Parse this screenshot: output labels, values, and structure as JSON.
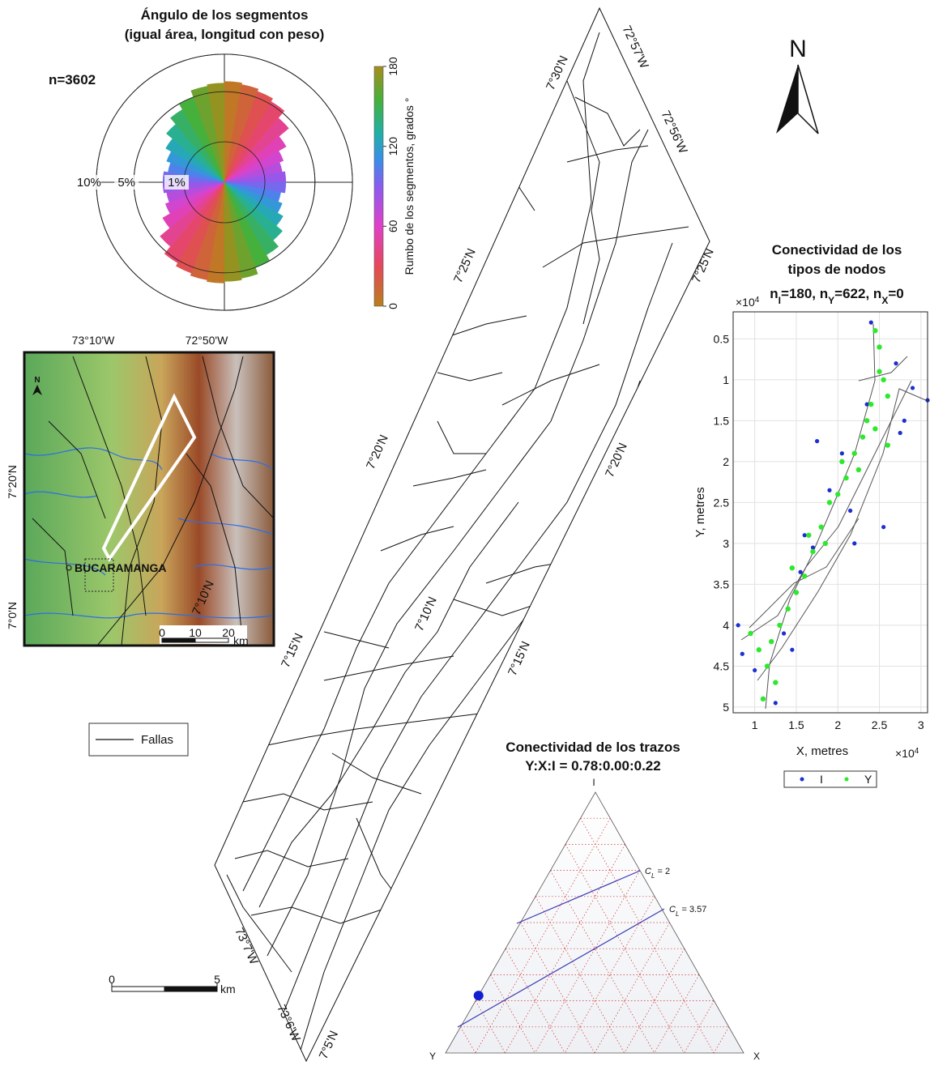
{
  "rose": {
    "type": "rose",
    "title": [
      "Ángulo de los segmentos",
      "(igual área, longitud con peso)"
    ],
    "n_label": "n=3602",
    "bins": [
      0,
      10,
      20,
      30,
      40,
      50,
      60,
      70,
      80,
      90,
      100,
      110,
      120,
      130,
      140,
      150,
      160,
      170,
      180
    ],
    "values": [
      6.2,
      6.0,
      5.7,
      5.3,
      4.3,
      3.1,
      2.4,
      2.1,
      2.3,
      2.3,
      2.0,
      2.3,
      2.8,
      3.5,
      4.3,
      5.0,
      5.8,
      6.0
    ],
    "rings": [
      {
        "value": 1,
        "label": "1%"
      },
      {
        "value": 5,
        "label": "5%"
      },
      {
        "value": 10,
        "label": "10%"
      }
    ],
    "colorbar": {
      "label": "Rumbo de los segmentos, grados °",
      "lim": [
        0,
        180
      ],
      "ticks": [
        0,
        60,
        120,
        180
      ]
    },
    "colormap": [
      {
        "at": 0,
        "color": "#b8801c"
      },
      {
        "at": 30,
        "color": "#e6485a"
      },
      {
        "at": 60,
        "color": "#e040c8"
      },
      {
        "at": 90,
        "color": "#8a5cf0"
      },
      {
        "at": 110,
        "color": "#3a8ee8"
      },
      {
        "at": 130,
        "color": "#20b0a6"
      },
      {
        "at": 155,
        "color": "#46b03c"
      },
      {
        "at": 180,
        "color": "#a88c1c"
      }
    ]
  },
  "inset_map": {
    "lon_labels": [
      "73°10'W",
      "72°50'W"
    ],
    "lat_labels": [
      "7°20'N",
      "7°0'N"
    ],
    "city": "BUCARAMANGA",
    "north": "N",
    "scale": {
      "ticks": [
        0,
        10,
        20
      ],
      "unit": "km"
    }
  },
  "fault_map": {
    "labels": [
      "7°30'N",
      "72°57'W",
      "72°56'W",
      "7°25'N",
      "7°25'N",
      "7°20'N",
      "7°20'N",
      "7°15'N",
      "7°15'N",
      "7°10'N",
      "7°10'N",
      "73°7'W",
      "73°6'W",
      "7°5'N"
    ],
    "legend": "Fallas",
    "scale": {
      "ticks": [
        0,
        5
      ],
      "unit": "km"
    }
  },
  "north_arrow": "N",
  "nodes": {
    "type": "scatter",
    "title": [
      "Conectividad de los",
      "tipos de nodos"
    ],
    "subtitle": [
      {
        "base": "n",
        "sub": "I",
        "text": "=180, "
      },
      {
        "base": "n",
        "sub": "Y",
        "text": "=622, "
      },
      {
        "base": "n",
        "sub": "X",
        "text": "=0"
      }
    ],
    "xlabel": "X, metres",
    "ylabel": "Y, metres",
    "exponent": {
      "base": "×10",
      "exp": "4"
    },
    "xlim": [
      0.74,
      3.08
    ],
    "ylim": [
      0.17,
      5.07
    ],
    "y_reversed": true,
    "xticks": [
      1,
      1.5,
      2,
      2.5,
      3
    ],
    "yticks": [
      0.5,
      1,
      1.5,
      2,
      2.5,
      3,
      3.5,
      4,
      4.5,
      5
    ],
    "grid": true,
    "series": [
      {
        "name": "I",
        "color": "#1c2fd0",
        "x": [
          0.8,
          0.85,
          1.0,
          1.25,
          1.35,
          1.55,
          1.7,
          1.75,
          1.9,
          2.05,
          2.15,
          2.35,
          2.4,
          2.7,
          2.8,
          2.9,
          3.08,
          2.2,
          1.6,
          1.45,
          2.55,
          2.75
        ],
        "values": [
          4.0,
          4.35,
          4.55,
          4.95,
          4.1,
          3.35,
          3.05,
          1.75,
          2.35,
          1.9,
          2.6,
          1.3,
          0.3,
          0.8,
          1.5,
          1.1,
          1.25,
          3.0,
          2.9,
          4.3,
          2.8,
          1.65
        ]
      },
      {
        "name": "Y",
        "color": "#2ee82e",
        "x": [
          1.15,
          1.2,
          1.3,
          1.25,
          1.4,
          1.5,
          1.45,
          1.6,
          1.7,
          1.65,
          1.8,
          1.9,
          1.85,
          2.0,
          2.1,
          2.05,
          2.2,
          2.3,
          2.25,
          2.35,
          2.4,
          2.45,
          2.5,
          2.55,
          2.6,
          2.5,
          2.45,
          2.6,
          1.05,
          0.95,
          1.1
        ],
        "values": [
          4.5,
          4.2,
          4.0,
          4.7,
          3.8,
          3.6,
          3.3,
          3.4,
          3.1,
          2.9,
          2.8,
          2.5,
          3.0,
          2.4,
          2.2,
          2.0,
          1.9,
          1.7,
          2.1,
          1.5,
          1.3,
          1.6,
          0.9,
          1.0,
          1.2,
          0.6,
          0.4,
          1.8,
          4.3,
          4.1,
          4.9
        ]
      }
    ]
  },
  "ternary": {
    "type": "ternary",
    "title": [
      "Conectividad de los trazos",
      "Y:X:I = 0.78:0.00:0.22"
    ],
    "vertices": {
      "I": "I",
      "Y": "Y",
      "X": "X"
    },
    "contours": [
      {
        "symbol": "C",
        "sub": "L",
        "label": " = 2"
      },
      {
        "symbol": "C",
        "sub": "L",
        "label": " = 3.57"
      }
    ],
    "point": {
      "Y": 0.78,
      "X": 0.0,
      "I": 0.22
    }
  }
}
